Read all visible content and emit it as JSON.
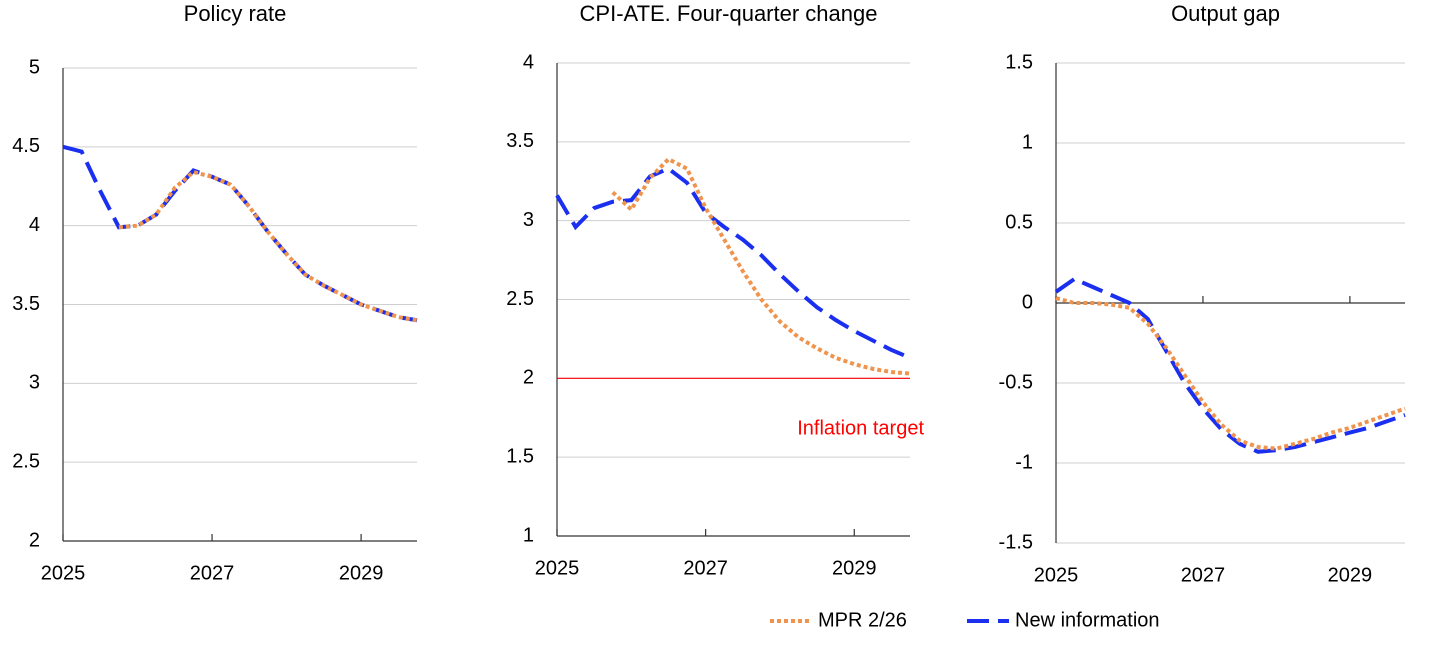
{
  "chart_data": [
    {
      "type": "line",
      "title": "Policy rate",
      "x": [
        2025,
        2025.25,
        2025.5,
        2025.75,
        2026,
        2026.25,
        2026.5,
        2026.75,
        2027,
        2027.25,
        2027.5,
        2027.75,
        2028,
        2028.25,
        2028.5,
        2028.75,
        2029,
        2029.25,
        2029.5,
        2029.75
      ],
      "xlim": [
        2025,
        2029.75
      ],
      "xticks": [
        2025,
        2027,
        2029
      ],
      "ylim": [
        2,
        5
      ],
      "yticks": [
        2,
        2.5,
        3,
        3.5,
        4,
        4.5,
        5
      ],
      "grid": true,
      "series": [
        {
          "name": "New information",
          "color": "#1a2ff0",
          "style": "dashed",
          "values": [
            4.5,
            4.47,
            4.22,
            3.99,
            4.0,
            4.07,
            4.22,
            4.35,
            4.31,
            4.26,
            4.12,
            3.96,
            3.82,
            3.69,
            3.62,
            3.56,
            3.5,
            3.46,
            3.42,
            3.4
          ]
        },
        {
          "name": "MPR 2/26",
          "color": "#f0944d",
          "style": "dotted",
          "values": [
            null,
            null,
            null,
            3.99,
            4.0,
            4.07,
            4.24,
            4.34,
            4.31,
            4.26,
            4.12,
            3.96,
            3.82,
            3.69,
            3.62,
            3.56,
            3.5,
            3.46,
            3.42,
            3.4
          ]
        }
      ]
    },
    {
      "type": "line",
      "title": "CPI-ATE. Four-quarter change",
      "x": [
        2025,
        2025.25,
        2025.5,
        2025.75,
        2026,
        2026.25,
        2026.5,
        2026.75,
        2027,
        2027.25,
        2027.5,
        2027.75,
        2028,
        2028.25,
        2028.5,
        2028.75,
        2029,
        2029.25,
        2029.5,
        2029.75
      ],
      "xlim": [
        2025,
        2029.75
      ],
      "xticks": [
        2025,
        2027,
        2029
      ],
      "ylim": [
        1,
        4
      ],
      "yticks": [
        1,
        1.5,
        2,
        2.5,
        3,
        3.5,
        4
      ],
      "grid": true,
      "reference_line": {
        "value": 2,
        "label": "Inflation target",
        "color": "#ff0000"
      },
      "series": [
        {
          "name": "New information",
          "color": "#1a2ff0",
          "style": "dashed",
          "values": [
            3.16,
            2.96,
            3.08,
            3.12,
            3.13,
            3.28,
            3.33,
            3.24,
            3.05,
            2.96,
            2.88,
            2.78,
            2.66,
            2.55,
            2.45,
            2.37,
            2.3,
            2.24,
            2.18,
            2.13
          ]
        },
        {
          "name": "MPR 2/26",
          "color": "#f0944d",
          "style": "dotted",
          "values": [
            null,
            null,
            null,
            3.18,
            3.07,
            3.27,
            3.39,
            3.33,
            3.08,
            2.88,
            2.68,
            2.5,
            2.36,
            2.26,
            2.19,
            2.13,
            2.09,
            2.06,
            2.04,
            2.03
          ]
        }
      ]
    },
    {
      "type": "line",
      "title": "Output gap",
      "x": [
        2025,
        2025.25,
        2025.5,
        2025.75,
        2026,
        2026.25,
        2026.5,
        2026.75,
        2027,
        2027.25,
        2027.5,
        2027.75,
        2028,
        2028.25,
        2028.5,
        2028.75,
        2029,
        2029.25,
        2029.5,
        2029.75
      ],
      "xlim": [
        2025,
        2029.75
      ],
      "xticks": [
        2025,
        2027,
        2029
      ],
      "ylim": [
        -1.5,
        1.5
      ],
      "yticks": [
        -1.5,
        -1,
        -0.5,
        0,
        0.5,
        1,
        1.5
      ],
      "grid": true,
      "series": [
        {
          "name": "New information",
          "color": "#1a2ff0",
          "style": "dashed",
          "values": [
            0.07,
            0.15,
            0.1,
            0.05,
            0.0,
            -0.1,
            -0.3,
            -0.5,
            -0.66,
            -0.79,
            -0.88,
            -0.93,
            -0.92,
            -0.9,
            -0.87,
            -0.84,
            -0.81,
            -0.78,
            -0.74,
            -0.7
          ]
        },
        {
          "name": "MPR 2/26",
          "color": "#f0944d",
          "style": "dotted",
          "values": [
            0.03,
            0.0,
            0.0,
            -0.01,
            -0.03,
            -0.13,
            -0.28,
            -0.45,
            -0.62,
            -0.76,
            -0.86,
            -0.9,
            -0.91,
            -0.88,
            -0.85,
            -0.81,
            -0.78,
            -0.74,
            -0.7,
            -0.66
          ]
        }
      ]
    }
  ]
}
